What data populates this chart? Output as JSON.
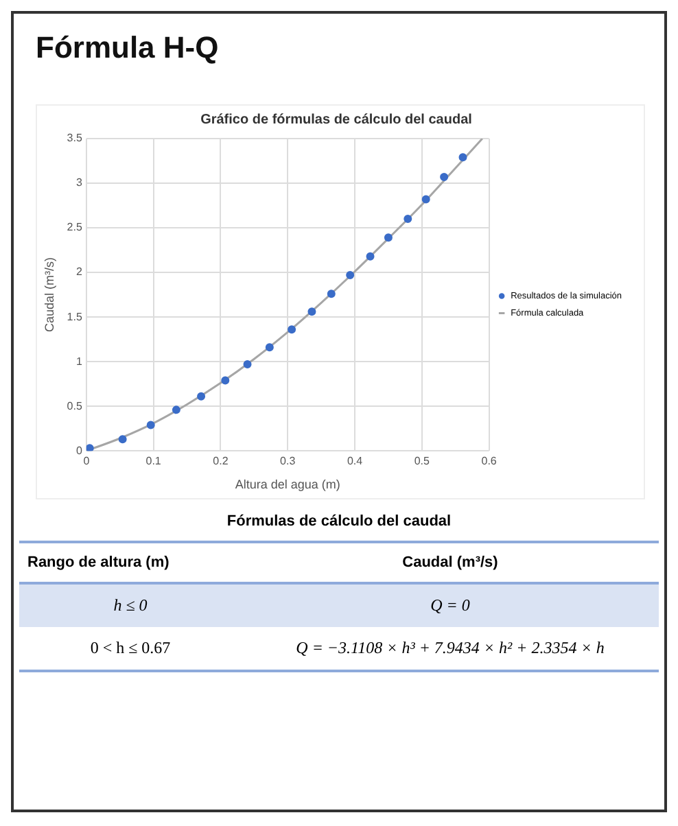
{
  "chart_data": {
    "type": "scatter",
    "title": "Fórmula H-Q",
    "subtitle": "Gráfico de fórmulas de cálculo del caudal",
    "xlabel": "Altura del agua (m)",
    "ylabel": "Caudal (m³/s)",
    "xlim": [
      0,
      0.6
    ],
    "xticks": [
      0,
      0.1,
      0.2,
      0.3,
      0.4,
      0.5,
      0.6
    ],
    "ylim": [
      0,
      3.5
    ],
    "yticks": [
      0,
      0.5,
      1,
      1.5,
      2,
      2.5,
      3,
      3.5
    ],
    "grid": true,
    "legend": "right",
    "series": [
      {
        "name": "Resultados de la simulación",
        "marker": "circle",
        "color": "#3a6cc8",
        "x": [
          0.005,
          0.054,
          0.096,
          0.134,
          0.171,
          0.207,
          0.24,
          0.273,
          0.306,
          0.336,
          0.365,
          0.393,
          0.423,
          0.45,
          0.479,
          0.506,
          0.533,
          0.561
        ],
        "values": [
          0.03,
          0.13,
          0.29,
          0.46,
          0.61,
          0.79,
          0.97,
          1.16,
          1.36,
          1.56,
          1.76,
          1.97,
          2.18,
          2.39,
          2.6,
          2.82,
          3.07,
          3.29
        ]
      },
      {
        "name": "Fórmula calculada",
        "type": "line",
        "marker": "none",
        "line_style": "solid",
        "color": "#a6a6a6",
        "x": [
          0,
          0.05,
          0.1,
          0.15,
          0.2,
          0.25,
          0.3,
          0.35,
          0.4,
          0.45,
          0.5,
          0.55,
          0.59
        ],
        "values": [
          0,
          0.14,
          0.31,
          0.52,
          0.76,
          1.03,
          1.33,
          1.66,
          2.01,
          2.38,
          2.76,
          3.17,
          3.5
        ]
      }
    ],
    "annotations": [
      "Fórmulas de cálculo del caudal",
      "Rango de altura (m)",
      "Caudal (m³/s)",
      "h ≤ 0",
      "Q = 0",
      "0 < h ≤ 0.67",
      "Q = −3.1108 × h³ + 7.9434 × h² + 2.3354 × h"
    ]
  }
}
